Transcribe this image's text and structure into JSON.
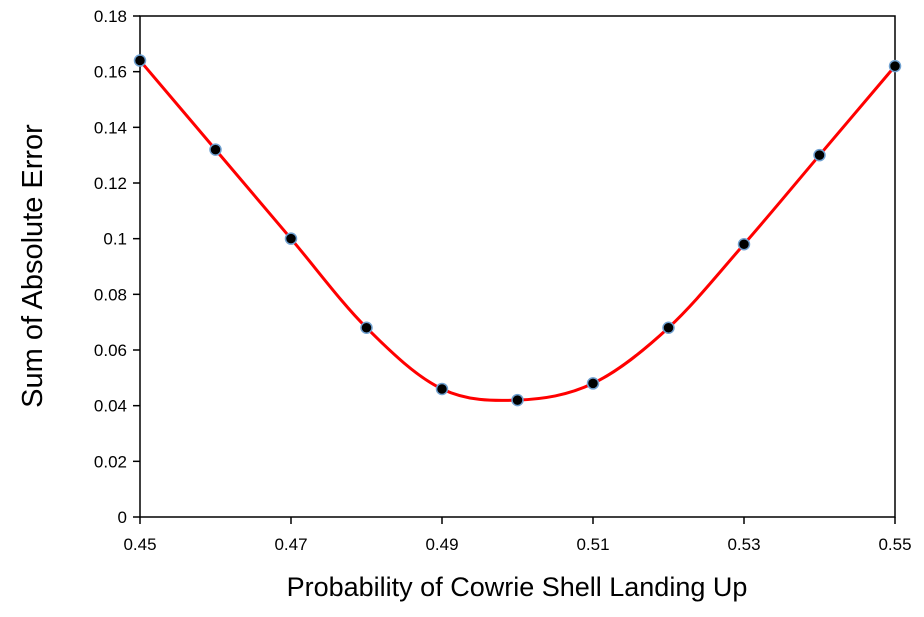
{
  "chart_data": {
    "type": "scatter",
    "title": "",
    "xlabel": "Probability of Cowrie Shell Landing Up",
    "ylabel": "Sum of Absolute Error",
    "xlim": [
      0.45,
      0.55
    ],
    "ylim": [
      0,
      0.18
    ],
    "x_ticks": [
      "0.45",
      "0.47",
      "0.49",
      "0.51",
      "0.53",
      "0.55"
    ],
    "y_ticks": [
      "0",
      "0.02",
      "0.04",
      "0.06",
      "0.08",
      "0.1",
      "0.12",
      "0.14",
      "0.16",
      "0.18"
    ],
    "x_tick_values": [
      0.45,
      0.47,
      0.49,
      0.51,
      0.53,
      0.55
    ],
    "y_tick_values": [
      0,
      0.02,
      0.04,
      0.06,
      0.08,
      0.1,
      0.12,
      0.14,
      0.16,
      0.18
    ],
    "grid": false,
    "legend": "none",
    "series": [
      {
        "x": [
          0.45,
          0.46,
          0.47,
          0.48,
          0.49,
          0.5,
          0.51,
          0.52,
          0.53,
          0.54,
          0.55
        ],
        "y": [
          0.164,
          0.132,
          0.1,
          0.068,
          0.046,
          0.042,
          0.048,
          0.068,
          0.098,
          0.13,
          0.162
        ],
        "line_color": "#ff0000",
        "marker_color": "#000000",
        "marker_edge_color": "#6fa0d0",
        "smooth": true
      }
    ]
  }
}
